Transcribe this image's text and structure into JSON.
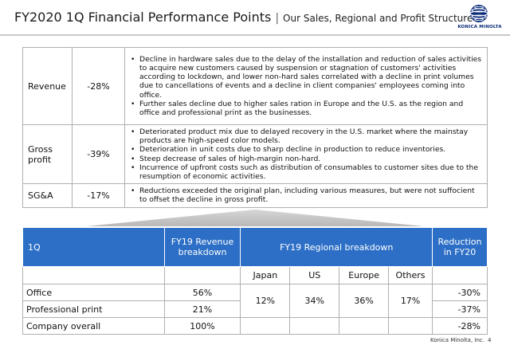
{
  "header": {
    "title": "FY2020 1Q Financial Performance Points",
    "separator": "|",
    "subtitle": "Our Sales, Regional and Profit Structure",
    "logo_text": "KONICA MINOLTA",
    "logo_icon": "konica-minolta-globe-icon",
    "brand_color": "#0a2a7a"
  },
  "summary": [
    {
      "item": "Revenue",
      "change": "-28%",
      "points": [
        "Decline in hardware sales due to the delay of the installation and reduction of sales activities to acquire new customers caused by suspension or stagnation of customers' activities according to lockdown, and lower non-hard sales correlated with a decline in print volumes due to cancellations of events and a decline in client companies' employees coming into office.",
        "Further sales decline due to higher sales ration in Europe and the U.S. as the region and office and professional print as the businesses."
      ]
    },
    {
      "item": "Gross profit",
      "change": "-39%",
      "points": [
        "Deteriorated product mix due to delayed recovery in the U.S. market where the mainstay products are high-speed color models.",
        "Deterioration in unit costs due to sharp decline in production to reduce inventories.",
        "Steep decrease of sales of high-margin non-hard.",
        "Incurrence of upfront costs such as distribution of consumables to customer sites due to the resumption of economic activities."
      ]
    },
    {
      "item": "SG&A",
      "change": "-17%",
      "points": [
        "Reductions exceeded the original plan, including various measures, but were not suffocient to offset the decline in gross profit."
      ]
    }
  ],
  "breakdown": {
    "header_color": "#2d6fc6",
    "col_period": "1Q",
    "col_revenue": "FY19 Revenue breakdown",
    "col_regional": "FY19 Regional breakdown",
    "col_reduction": "Reduction in FY20",
    "regions": [
      "Japan",
      "US",
      "Europe",
      "Others"
    ],
    "regional_shares": [
      "12%",
      "34%",
      "36%",
      "17%"
    ],
    "rows": [
      {
        "label": "Office",
        "revenue_share": "56%",
        "reduction": "-30%"
      },
      {
        "label": "Professional print",
        "revenue_share": "21%",
        "reduction": "-37%"
      },
      {
        "label": "Company overall",
        "revenue_share": "100%",
        "reduction": "-28%"
      }
    ]
  },
  "footer": {
    "company": "Konica Minolta, Inc.",
    "page": "4"
  }
}
